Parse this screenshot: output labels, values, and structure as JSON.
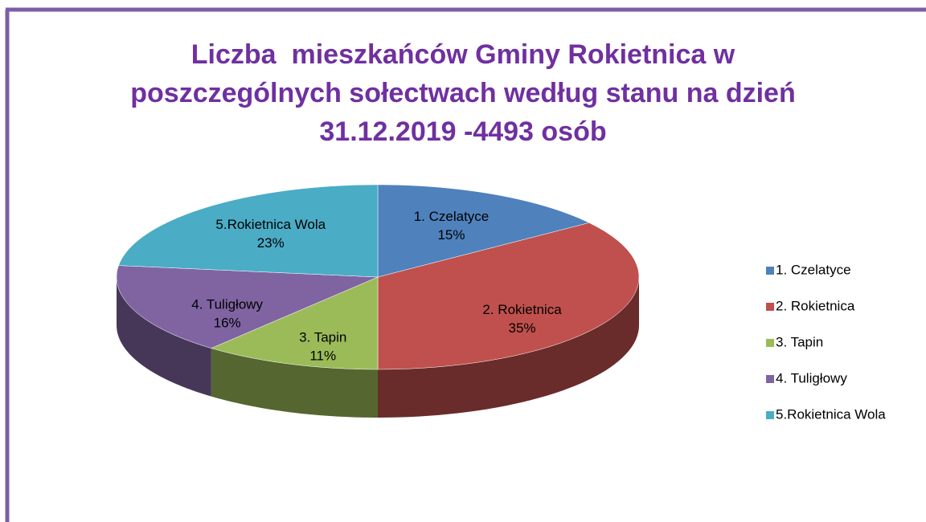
{
  "chart_data": {
    "type": "pie",
    "title": [
      "Liczba  mieszkańców Gminy Rokietnica w",
      "poszczególnych sołectwach według stanu na dzień",
      "31.12.2019 -4493 osób"
    ],
    "categories": [
      "1. Czelatyce",
      "2. Rokietnica",
      "3. Tapin",
      "4. Tuligłowy",
      "5.Rokietnica Wola"
    ],
    "values": [
      15,
      35,
      11,
      16,
      23
    ],
    "value_labels": [
      "15%",
      "35%",
      "11%",
      "16%",
      "23%"
    ],
    "colors": [
      "#4f81bd",
      "#c0504d",
      "#9bbb59",
      "#8064a2",
      "#4bacc6"
    ],
    "legend": "right"
  }
}
